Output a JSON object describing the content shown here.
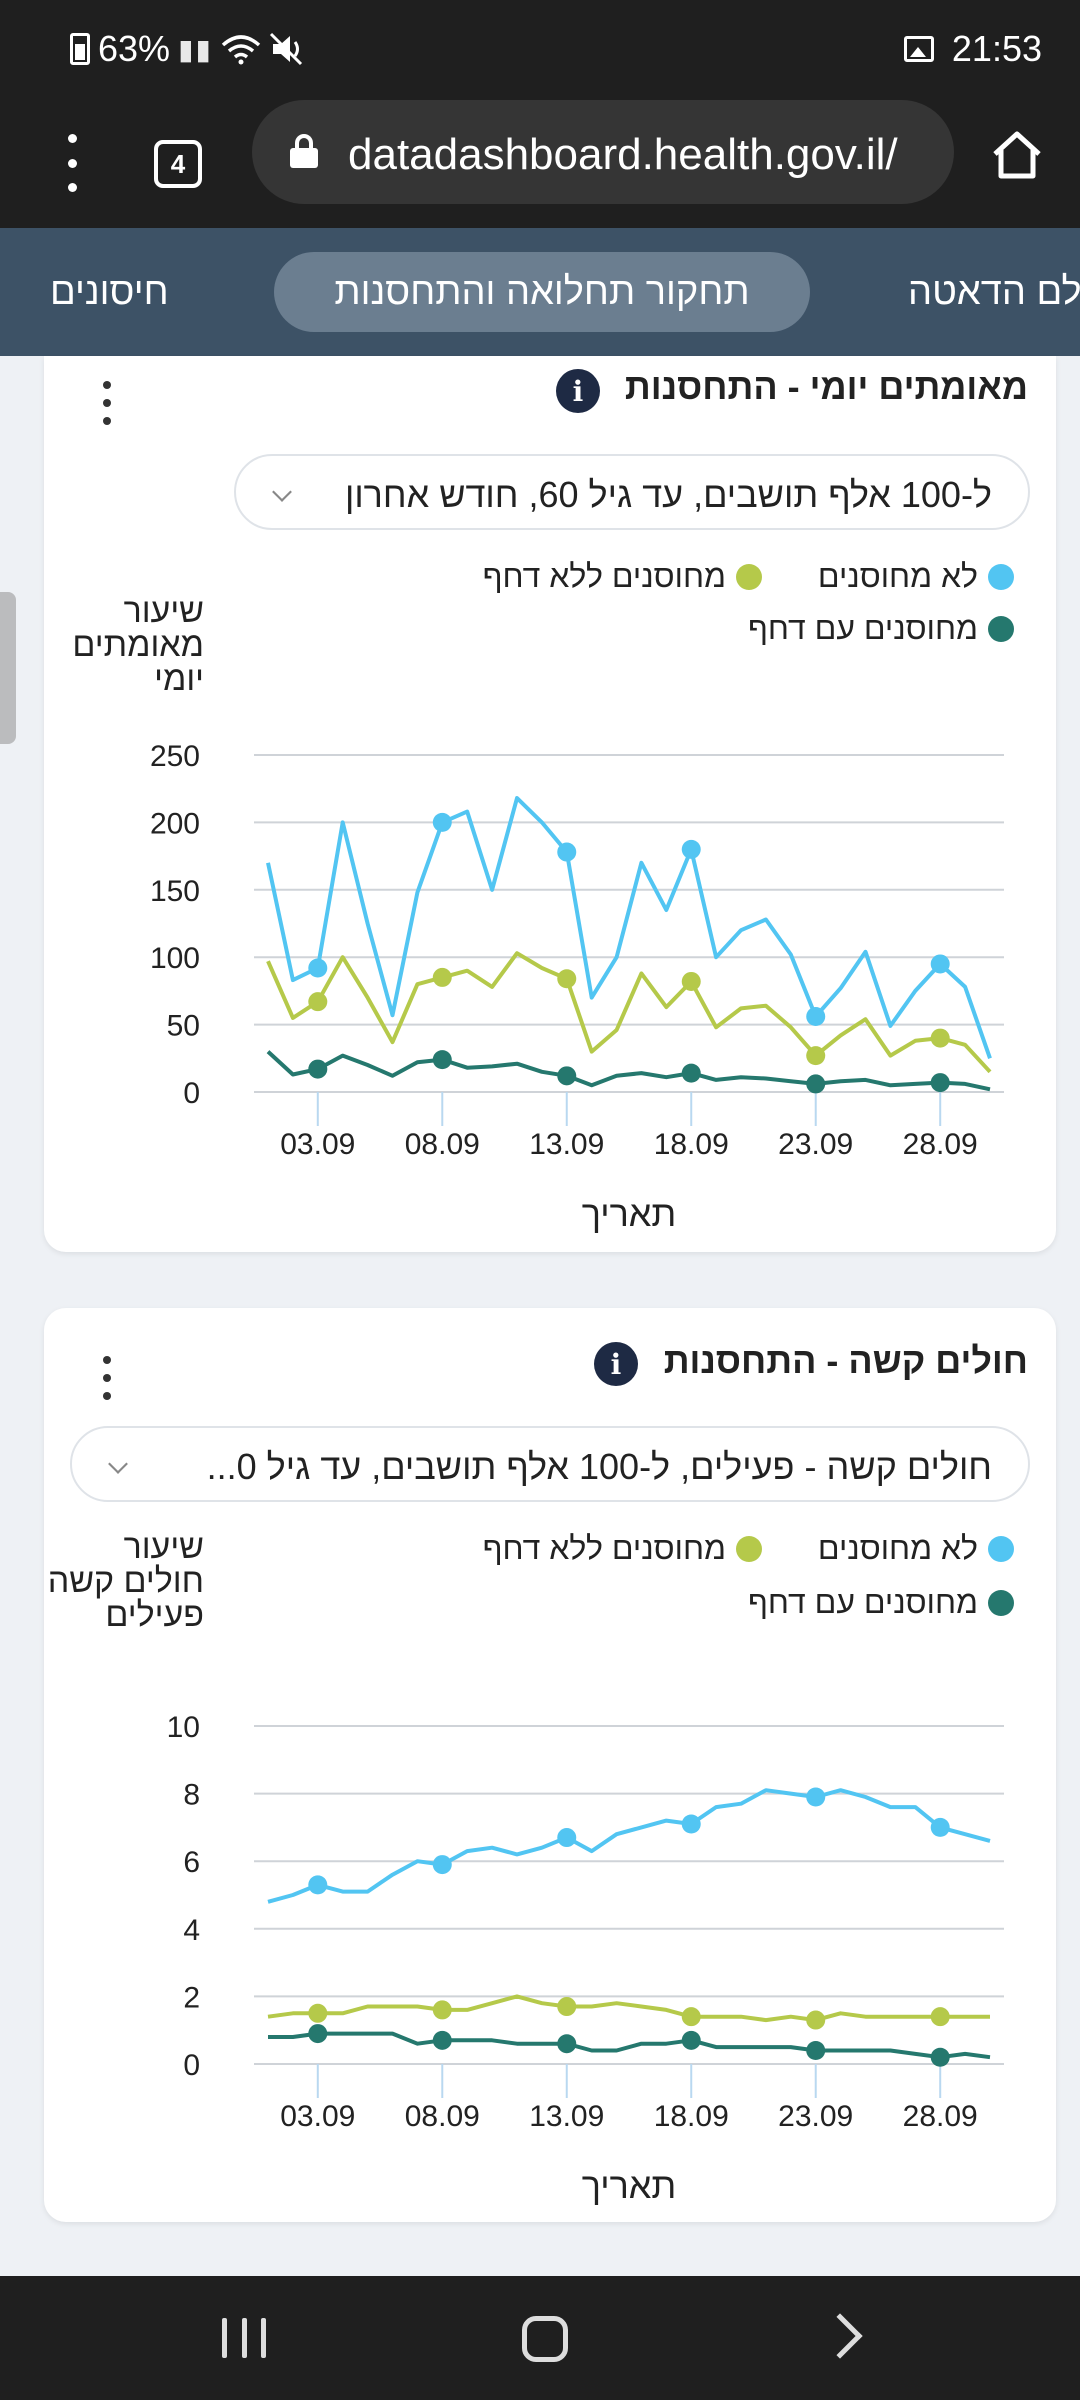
{
  "status_bar": {
    "battery": "63%",
    "time": "21:53"
  },
  "browser": {
    "tab_count": "4",
    "url": "datadashboard.health.gov.il/"
  },
  "site_nav": {
    "tabs": [
      {
        "label": "לם הדאטה"
      },
      {
        "label": "תחקור תחלואה והתחסנות"
      },
      {
        "label": "חיסונים"
      }
    ]
  },
  "card1": {
    "title": "מאומתים יומי - התחסנות",
    "info": "i",
    "dropdown_value": "ל-100 אלף תושבים, עד גיל 60, חודש אחרון",
    "legend": [
      {
        "label": "לא מחוסנים",
        "color": "#52c5f2"
      },
      {
        "label": "מחוסנים ללא דחף",
        "color": "#b5c94a"
      },
      {
        "label": "מחוסנים עם דחף",
        "color": "#25786e"
      }
    ],
    "ylabel": "שיעור מאומתים יומי",
    "xlabel": "תאריך"
  },
  "card2": {
    "title": "חולים קשה - התחסנות",
    "info": "i",
    "dropdown_value": "חולים קשה - פעילים, ל-100 אלף תושבים, עד גיל 0...",
    "legend": [
      {
        "label": "לא מחוסנים",
        "color": "#52c5f2"
      },
      {
        "label": "מחוסנים ללא דחף",
        "color": "#b5c94a"
      },
      {
        "label": "מחוסנים עם דחף",
        "color": "#25786e"
      }
    ],
    "ylabel": "שיעור חולים קשה פעילים",
    "xlabel": "תאריך"
  },
  "chart_data": [
    {
      "type": "line",
      "title": "מאומתים יומי - התחסנות",
      "xlabel": "תאריך",
      "ylabel": "שיעור מאומתים יומי",
      "x_ticks": [
        "03.09",
        "08.09",
        "13.09",
        "18.09",
        "23.09",
        "28.09"
      ],
      "y_ticks": [
        0,
        50,
        100,
        150,
        200,
        250
      ],
      "ylim": [
        0,
        250
      ],
      "x_range": [
        1,
        30
      ],
      "marker_every": 5,
      "grid": true,
      "legend_position": "top-right",
      "series": [
        {
          "name": "לא מחוסנים",
          "color": "#52c5f2",
          "values": [
            170,
            83,
            92,
            200,
            125,
            57,
            148,
            200,
            208,
            150,
            218,
            200,
            178,
            70,
            100,
            170,
            135,
            180,
            100,
            120,
            128,
            102,
            56,
            77,
            104,
            49,
            75,
            95,
            78,
            25
          ]
        },
        {
          "name": "מחוסנים ללא דחף",
          "color": "#b5c94a",
          "values": [
            97,
            55,
            67,
            100,
            70,
            37,
            80,
            85,
            90,
            78,
            103,
            92,
            84,
            30,
            46,
            88,
            63,
            82,
            48,
            62,
            64,
            48,
            27,
            42,
            54,
            27,
            38,
            40,
            35,
            15
          ]
        },
        {
          "name": "מחוסנים עם דחף",
          "color": "#25786e",
          "values": [
            30,
            13,
            17,
            27,
            20,
            12,
            22,
            24,
            18,
            19,
            21,
            15,
            12,
            5,
            12,
            14,
            11,
            14,
            9,
            11,
            10,
            8,
            6,
            8,
            9,
            5,
            6,
            7,
            6,
            2
          ]
        }
      ]
    },
    {
      "type": "line",
      "title": "חולים קשה - התחסנות",
      "xlabel": "תאריך",
      "ylabel": "שיעור חולים קשה פעילים",
      "x_ticks": [
        "03.09",
        "08.09",
        "13.09",
        "18.09",
        "23.09",
        "28.09"
      ],
      "y_ticks": [
        0,
        2,
        4,
        6,
        8,
        10
      ],
      "ylim": [
        0,
        10
      ],
      "x_range": [
        1,
        30
      ],
      "marker_every": 5,
      "grid": true,
      "legend_position": "top-right",
      "series": [
        {
          "name": "לא מחוסנים",
          "color": "#52c5f2",
          "values": [
            4.8,
            5.0,
            5.3,
            5.1,
            5.1,
            5.6,
            6.0,
            5.9,
            6.3,
            6.4,
            6.2,
            6.4,
            6.7,
            6.3,
            6.8,
            7.0,
            7.2,
            7.1,
            7.6,
            7.7,
            8.1,
            8.0,
            7.9,
            8.1,
            7.9,
            7.6,
            7.6,
            7.0,
            6.8,
            6.6
          ]
        },
        {
          "name": "מחוסנים ללא דחף",
          "color": "#b5c94a",
          "values": [
            1.4,
            1.5,
            1.5,
            1.5,
            1.7,
            1.7,
            1.7,
            1.6,
            1.6,
            1.8,
            2.0,
            1.8,
            1.7,
            1.7,
            1.8,
            1.7,
            1.6,
            1.4,
            1.4,
            1.4,
            1.3,
            1.4,
            1.3,
            1.5,
            1.4,
            1.4,
            1.4,
            1.4,
            1.4,
            1.4
          ]
        },
        {
          "name": "מחוסנים עם דחף",
          "color": "#25786e",
          "values": [
            0.8,
            0.8,
            0.9,
            0.9,
            0.9,
            0.9,
            0.6,
            0.7,
            0.7,
            0.7,
            0.6,
            0.6,
            0.6,
            0.4,
            0.4,
            0.6,
            0.6,
            0.7,
            0.5,
            0.5,
            0.5,
            0.5,
            0.4,
            0.4,
            0.4,
            0.4,
            0.3,
            0.2,
            0.3,
            0.2
          ]
        }
      ]
    }
  ]
}
